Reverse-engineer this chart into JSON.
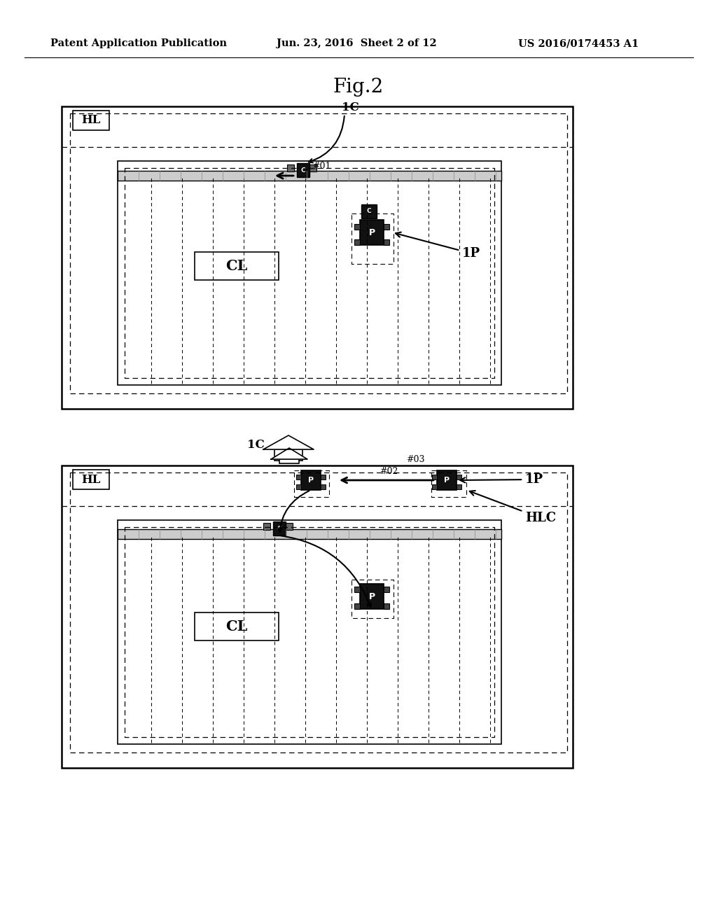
{
  "header_left": "Patent Application Publication",
  "header_mid": "Jun. 23, 2016  Sheet 2 of 12",
  "header_right": "US 2016/0174453 A1",
  "title": "Fig.2",
  "bg_color": "#ffffff",
  "lc": "#000000"
}
